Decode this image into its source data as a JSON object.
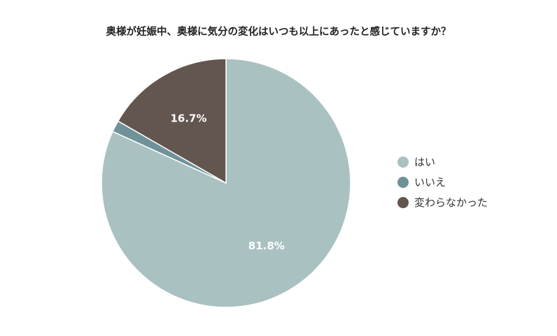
{
  "chart_data": {
    "type": "pie",
    "title": "奥様が妊娠中、奥様に気分の変化はいつも以上にあったと感じていますか？",
    "start_angle_deg": 0,
    "direction": "clockwise",
    "categories": [
      "はい",
      "いいえ",
      "変わらなかった"
    ],
    "values": [
      81.8,
      1.5,
      16.7
    ],
    "data_labels": [
      "81.8%",
      "",
      "16.7%"
    ],
    "colors": [
      "#aac1c2",
      "#6f9299",
      "#62564f"
    ],
    "legend_position": "right"
  }
}
